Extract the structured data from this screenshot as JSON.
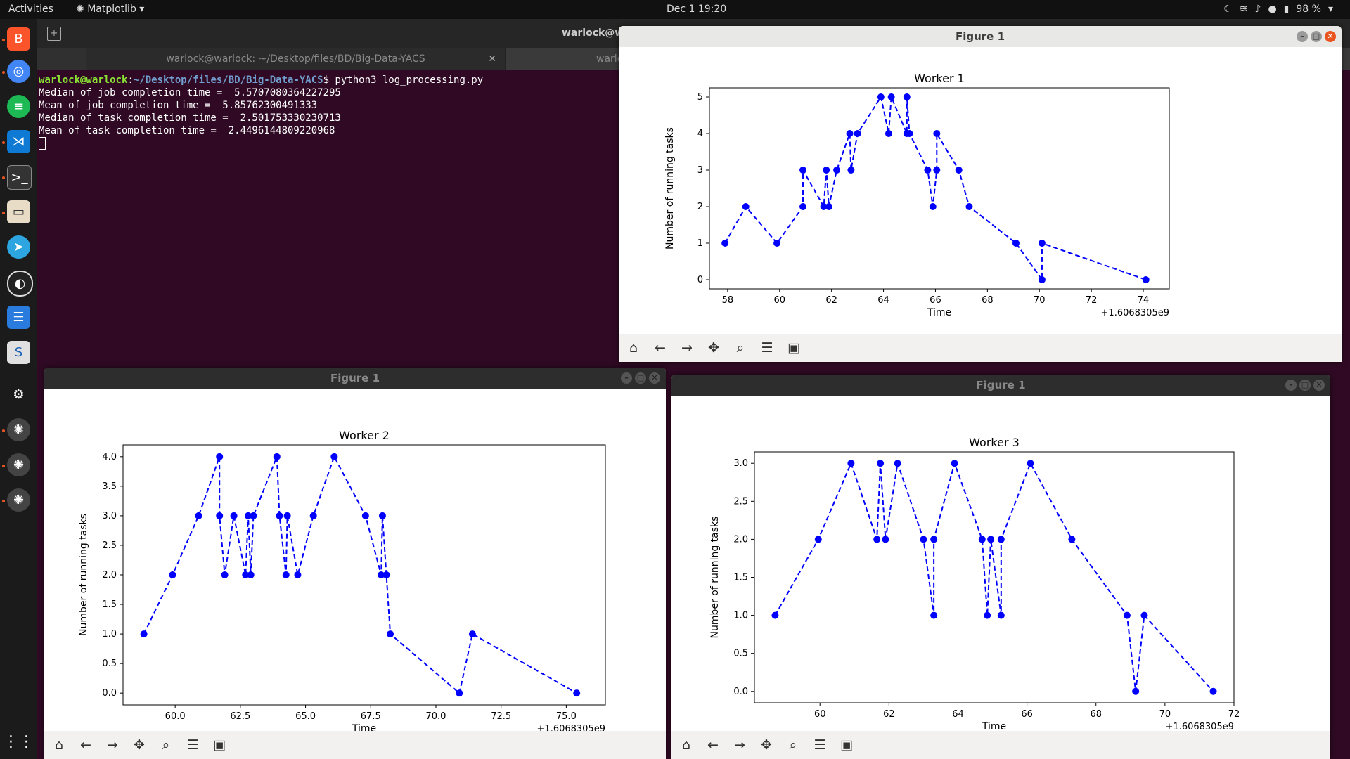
{
  "topbar": {
    "activities": "Activities",
    "app_menu": "Matplotlib",
    "clock": "Dec 1  19:20",
    "battery": "98 %"
  },
  "terminal": {
    "title": "warlock@w",
    "tabs": [
      {
        "label": "warlock@warlock: ~/Desktop/files/BD/Big-Data-YACS"
      },
      {
        "label": "warlock@wa"
      }
    ],
    "prompt_user": "warlock@warlock",
    "prompt_path": "~/Desktop/files/BD/Big-Data-YACS",
    "command": "$ python3 log_processing.py",
    "output": [
      "Median of job completion time =  5.5707080364227295",
      "Mean of job completion time =  5.85762300491333",
      "Median of task completion time =  2.501753330230713",
      "Mean of task completion time =  2.4496144809220968"
    ]
  },
  "figures": [
    {
      "window_title": "Figure 1",
      "active": true,
      "chart": "w1"
    },
    {
      "window_title": "Figure 1",
      "active": false,
      "chart": "w2"
    },
    {
      "window_title": "Figure 1",
      "active": false,
      "chart": "w3"
    }
  ],
  "chart_data": [
    {
      "id": "w1",
      "type": "line",
      "title": "Worker 1",
      "xlabel": "Time",
      "ylabel": "Number of running tasks",
      "offset_label": "+1.6068305e9",
      "xlim": [
        57.3,
        75.0
      ],
      "ylim": [
        -0.25,
        5.25
      ],
      "xticks": [
        58,
        60,
        62,
        64,
        66,
        68,
        70,
        72,
        74
      ],
      "xtick_labels": [
        "58",
        "60",
        "62",
        "64",
        "66",
        "68",
        "70",
        "72",
        "74"
      ],
      "yticks": [
        0,
        1,
        2,
        3,
        4,
        5
      ],
      "ytick_labels": [
        "0",
        "1",
        "2",
        "3",
        "4",
        "5"
      ],
      "style": "dashed-line-with-dots",
      "color": "#0000ff",
      "x": [
        57.9,
        58.7,
        59.9,
        60.9,
        60.9,
        61.7,
        61.8,
        61.9,
        62.2,
        62.7,
        62.75,
        63.0,
        63.9,
        64.2,
        64.3,
        64.9,
        64.9,
        65.0,
        65.7,
        65.9,
        66.05,
        66.05,
        66.9,
        67.3,
        69.1,
        70.1,
        70.1,
        74.1
      ],
      "y": [
        1,
        2,
        1,
        2,
        3,
        2,
        3,
        2,
        3,
        4,
        3,
        4,
        5,
        4,
        5,
        4,
        5,
        4,
        3,
        2,
        3,
        4,
        3,
        2,
        1,
        0,
        1,
        0
      ]
    },
    {
      "id": "w2",
      "type": "line",
      "title": "Worker 2",
      "xlabel": "Time",
      "ylabel": "Number of running tasks",
      "offset_label": "+1.6068305e9",
      "xlim": [
        58.0,
        76.5
      ],
      "ylim": [
        -0.2,
        4.2
      ],
      "xticks": [
        60.0,
        62.5,
        65.0,
        67.5,
        70.0,
        72.5,
        75.0
      ],
      "xtick_labels": [
        "60.0",
        "62.5",
        "65.0",
        "67.5",
        "70.0",
        "72.5",
        "75.0"
      ],
      "yticks": [
        0.0,
        0.5,
        1.0,
        1.5,
        2.0,
        2.5,
        3.0,
        3.5,
        4.0
      ],
      "ytick_labels": [
        "0.0",
        "0.5",
        "1.0",
        "1.5",
        "2.0",
        "2.5",
        "3.0",
        "3.5",
        "4.0"
      ],
      "style": "dashed-line-with-dots",
      "color": "#0000ff",
      "x": [
        58.8,
        59.9,
        60.9,
        61.7,
        61.7,
        61.9,
        62.25,
        62.7,
        62.8,
        62.9,
        63.0,
        63.9,
        64.0,
        64.25,
        64.3,
        64.7,
        65.3,
        66.1,
        67.3,
        67.9,
        67.95,
        68.1,
        68.25,
        70.9,
        71.4,
        75.4
      ],
      "y": [
        1,
        2,
        3,
        4,
        3,
        2,
        3,
        2,
        3,
        2,
        3,
        4,
        3,
        2,
        3,
        2,
        3,
        4,
        3,
        2,
        3,
        2,
        1,
        0,
        1,
        0
      ]
    },
    {
      "id": "w3",
      "type": "line",
      "title": "Worker 3",
      "xlabel": "Time",
      "ylabel": "Number of running tasks",
      "offset_label": "+1.6068305e9",
      "xlim": [
        58.1,
        72.0
      ],
      "ylim": [
        -0.15,
        3.15
      ],
      "xticks": [
        60,
        62,
        64,
        66,
        68,
        70,
        72
      ],
      "xtick_labels": [
        "60",
        "62",
        "64",
        "66",
        "68",
        "70",
        "72"
      ],
      "yticks": [
        0.0,
        0.5,
        1.0,
        1.5,
        2.0,
        2.5,
        3.0
      ],
      "ytick_labels": [
        "0.0",
        "0.5",
        "1.0",
        "1.5",
        "2.0",
        "2.5",
        "3.0"
      ],
      "style": "dashed-line-with-dots",
      "color": "#0000ff",
      "x": [
        58.7,
        59.95,
        60.9,
        61.65,
        61.75,
        61.9,
        62.25,
        63.0,
        63.3,
        63.3,
        63.9,
        64.7,
        64.85,
        64.95,
        65.25,
        65.25,
        66.1,
        67.3,
        68.9,
        69.15,
        69.4,
        71.4
      ],
      "y": [
        1,
        2,
        3,
        2,
        3,
        2,
        3,
        2,
        1,
        2,
        3,
        2,
        1,
        2,
        1,
        2,
        3,
        2,
        1,
        0,
        1,
        0
      ]
    }
  ],
  "toolbar_icons": [
    "home-icon",
    "back-icon",
    "forward-icon",
    "pan-icon",
    "zoom-icon",
    "configure-icon",
    "save-icon"
  ]
}
